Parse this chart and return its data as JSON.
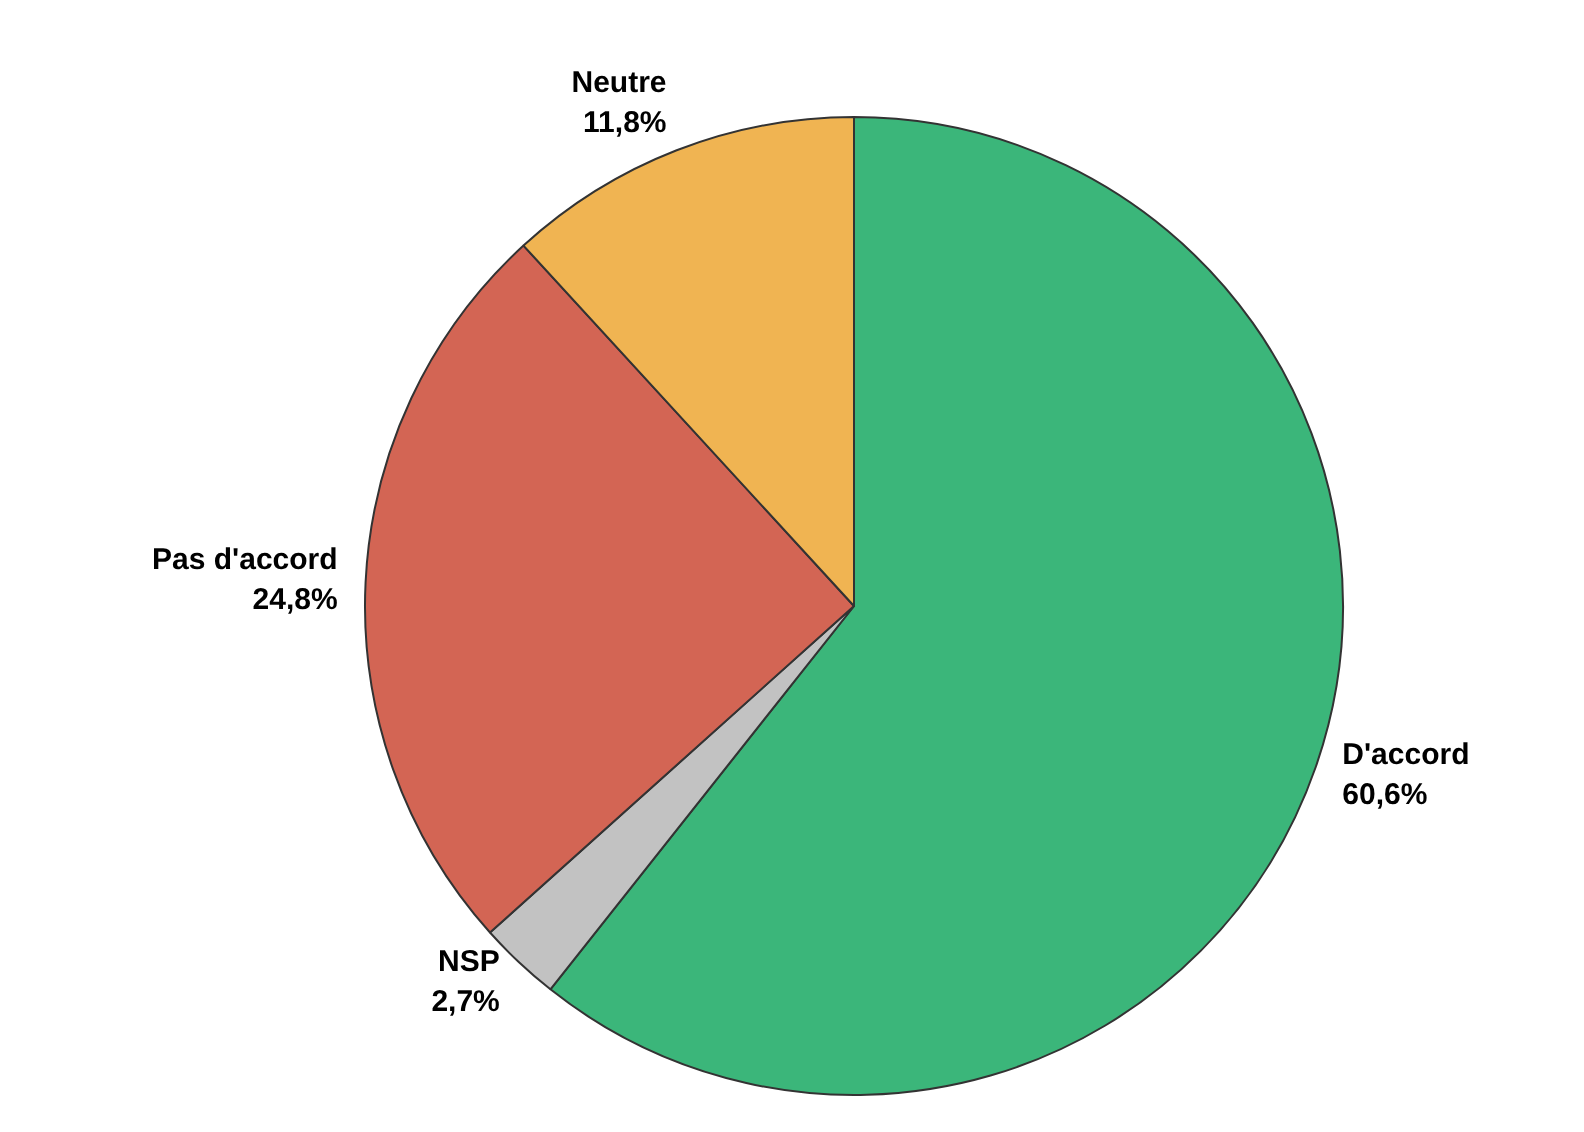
{
  "chart_data": {
    "type": "pie",
    "categories": [
      "D'accord",
      "NSP",
      "Pas d'accord",
      "Neutre"
    ],
    "values": [
      60.6,
      2.7,
      24.8,
      11.8
    ],
    "value_labels": [
      "60,6%",
      "2,7%",
      "24,8%",
      "11,8%"
    ],
    "colors": [
      "#3bb67a",
      "#c2c2c2",
      "#d36554",
      "#f0b452"
    ],
    "legend": false
  }
}
